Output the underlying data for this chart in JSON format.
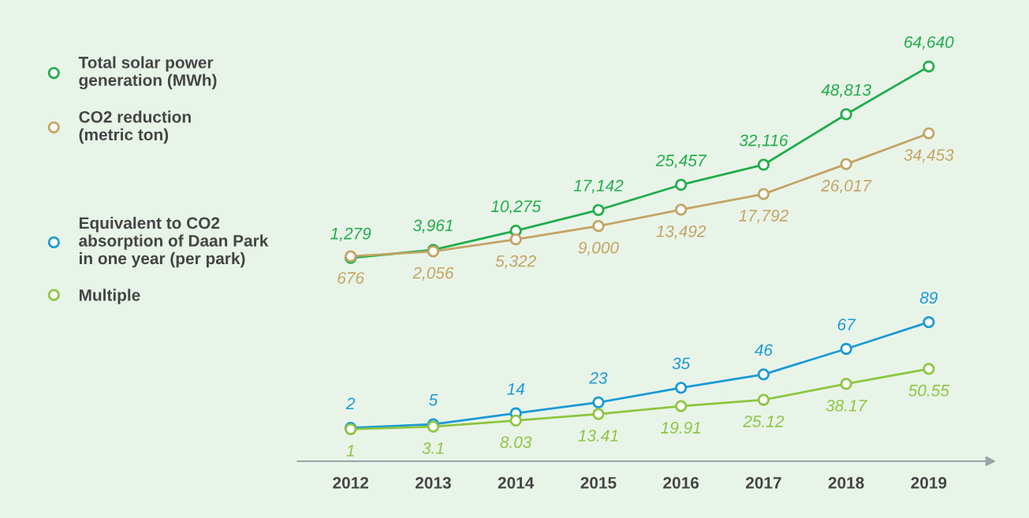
{
  "chart_data": [
    {
      "type": "line",
      "categories": [
        "2012",
        "2013",
        "2014",
        "2015",
        "2016",
        "2017",
        "2018",
        "2019"
      ],
      "series": [
        {
          "name": "Total solar power\ngeneration (MWh)",
          "color": "#1fae4b",
          "values": [
            1279,
            3961,
            10275,
            17142,
            25457,
            32116,
            48813,
            64640
          ],
          "value_labels": [
            "1,279",
            "3,961",
            "10,275",
            "17,142",
            "25,457",
            "32,116",
            "48,813",
            "64,640"
          ]
        },
        {
          "name": "CO2 reduction\n(metric ton)",
          "color": "#c3a463",
          "axis": "y2",
          "values": [
            676,
            2056,
            5322,
            9000,
            13492,
            17792,
            26017,
            34453
          ],
          "value_labels": [
            "676",
            "2,056",
            "5,322",
            "9,000",
            "13,492",
            "17,792",
            "26,017",
            "34,453"
          ]
        }
      ],
      "tick_labels": false,
      "marker": "circle",
      "line_style": "solid",
      "legend": "left"
    },
    {
      "type": "line",
      "categories": [
        "2012",
        "2013",
        "2014",
        "2015",
        "2016",
        "2017",
        "2018",
        "2019"
      ],
      "series": [
        {
          "name": "Equivalent to CO2\nabsorption of Daan Park\nin one year (per park)",
          "color": "#1a9ad6",
          "values": [
            2,
            5,
            14,
            23,
            35,
            46,
            67,
            89
          ],
          "value_labels": [
            "2",
            "5",
            "14",
            "23",
            "35",
            "46",
            "67",
            "89"
          ]
        },
        {
          "name": "Multiple",
          "color": "#8cc63f",
          "values": [
            1,
            3.1,
            8.03,
            13.41,
            19.91,
            25.12,
            38.17,
            50.55
          ],
          "value_labels": [
            "1",
            "3.1",
            "8.03",
            "13.41",
            "19.91",
            "25.12",
            "38.17",
            "50.55"
          ]
        }
      ],
      "tick_labels": "x",
      "marker": "circle",
      "line_style": "solid",
      "legend": "left"
    }
  ]
}
